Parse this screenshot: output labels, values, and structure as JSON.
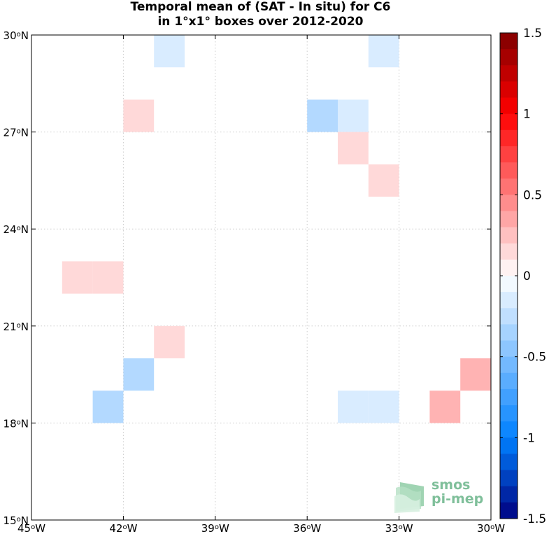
{
  "title": {
    "line1": "Temporal mean of (SAT - In situ) for C6",
    "line2": "in 1°x1° boxes over 2012-2020"
  },
  "chart_data": {
    "type": "heatmap",
    "title": "Temporal mean of (SAT - In situ) for C6 in 1°x1° boxes over 2012-2020",
    "xlim": [
      -45,
      -30
    ],
    "ylim": [
      15,
      30
    ],
    "x_ticks": [
      {
        "value": -45,
        "label": "45°W"
      },
      {
        "value": -42,
        "label": "42°W"
      },
      {
        "value": -39,
        "label": "39°W"
      },
      {
        "value": -36,
        "label": "36°W"
      },
      {
        "value": -33,
        "label": "33°W"
      },
      {
        "value": -30,
        "label": "30°W"
      }
    ],
    "y_ticks": [
      {
        "value": 30,
        "label": "30°N"
      },
      {
        "value": 27,
        "label": "27°N"
      },
      {
        "value": 24,
        "label": "24°N"
      },
      {
        "value": 21,
        "label": "21°N"
      },
      {
        "value": 18,
        "label": "18°N"
      },
      {
        "value": 15,
        "label": "15°N"
      }
    ],
    "grid": true,
    "cells": [
      {
        "lon": -41,
        "lat": 29,
        "value": -0.15
      },
      {
        "lon": -34,
        "lat": 29,
        "value": -0.15
      },
      {
        "lon": -42,
        "lat": 27,
        "value": 0.15
      },
      {
        "lon": -36,
        "lat": 27,
        "value": -0.3
      },
      {
        "lon": -35,
        "lat": 27,
        "value": -0.15
      },
      {
        "lon": -35,
        "lat": 26,
        "value": 0.15
      },
      {
        "lon": -34,
        "lat": 25,
        "value": 0.15
      },
      {
        "lon": -44,
        "lat": 22,
        "value": 0.15
      },
      {
        "lon": -43,
        "lat": 22,
        "value": 0.15
      },
      {
        "lon": -41,
        "lat": 20,
        "value": 0.15
      },
      {
        "lon": -42,
        "lat": 19,
        "value": -0.3
      },
      {
        "lon": -31,
        "lat": 19,
        "value": 0.3
      },
      {
        "lon": -43,
        "lat": 18,
        "value": -0.3
      },
      {
        "lon": -35,
        "lat": 18,
        "value": -0.15
      },
      {
        "lon": -34,
        "lat": 18,
        "value": -0.15
      },
      {
        "lon": -32,
        "lat": 18,
        "value": 0.3
      }
    ],
    "colorbar": {
      "min": -1.5,
      "max": 1.5,
      "ticks": [
        {
          "value": 1.5,
          "label": "1.5"
        },
        {
          "value": 1,
          "label": "1"
        },
        {
          "value": 0.5,
          "label": "0.5"
        },
        {
          "value": 0,
          "label": "0"
        },
        {
          "value": -0.5,
          "label": "-0.5"
        },
        {
          "value": -1,
          "label": "-1"
        },
        {
          "value": -1.5,
          "label": "-1.5"
        }
      ],
      "levels": 30,
      "colormap": "blue-white-red"
    }
  },
  "logo": {
    "line1": "smos",
    "line2": "pi-mep"
  }
}
